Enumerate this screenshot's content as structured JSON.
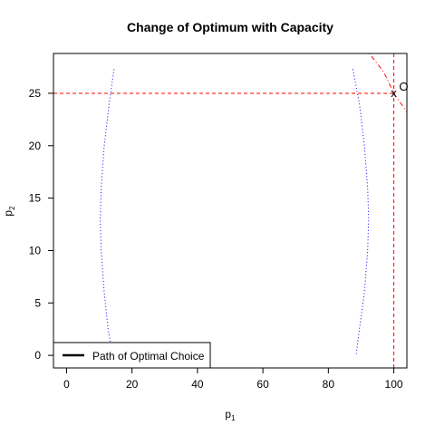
{
  "chart_data": {
    "type": "line",
    "title": "Change of Optimum with Capacity",
    "xlabel": {
      "base": "p",
      "sub": "1"
    },
    "ylabel": {
      "base": "p",
      "sub": "2"
    },
    "xlim": [
      -4,
      104
    ],
    "ylim": [
      -1.2,
      28.8
    ],
    "x_ticks": [
      0,
      20,
      40,
      60,
      80,
      100
    ],
    "y_ticks": [
      0,
      5,
      10,
      15,
      20,
      25
    ],
    "grid": false,
    "legend": {
      "position": "bottom-left",
      "entries": [
        "Path of Optimal Choice"
      ]
    },
    "series": [
      {
        "style": "dotted",
        "color": "#0000ff",
        "points": [
          [
            14.5,
            27.3
          ],
          [
            13.0,
            24.0
          ],
          [
            11.5,
            20.0
          ],
          [
            10.6,
            16.0
          ],
          [
            10.3,
            13.0
          ],
          [
            10.6,
            10.0
          ],
          [
            11.5,
            6.0
          ],
          [
            12.7,
            2.5
          ],
          [
            13.5,
            1.0
          ]
        ]
      },
      {
        "style": "dotted",
        "color": "#0000ff",
        "points": [
          [
            87.5,
            27.3
          ],
          [
            89.5,
            24.0
          ],
          [
            91.0,
            20.0
          ],
          [
            92.0,
            16.0
          ],
          [
            92.3,
            13.0
          ],
          [
            92.0,
            10.0
          ],
          [
            91.0,
            6.0
          ],
          [
            89.5,
            2.5
          ],
          [
            88.5,
            0.0
          ]
        ]
      },
      {
        "style": "dashed",
        "color": "#ff0000",
        "points": [
          [
            -4,
            25
          ],
          [
            100,
            25
          ]
        ]
      },
      {
        "style": "dashed",
        "color": "#ff0000",
        "points": [
          [
            100,
            -1.2
          ],
          [
            100,
            28.8
          ]
        ]
      },
      {
        "style": "dotdash",
        "color": "#ff0000",
        "points": [
          [
            92.5,
            28.8
          ],
          [
            97.0,
            27.0
          ],
          [
            100.0,
            25.0
          ],
          [
            104.0,
            23.2
          ]
        ]
      }
    ],
    "annotations": [
      {
        "text": "x",
        "x": 100,
        "y": 25
      },
      {
        "text": "O",
        "x": 103,
        "y": 25.6
      }
    ]
  }
}
